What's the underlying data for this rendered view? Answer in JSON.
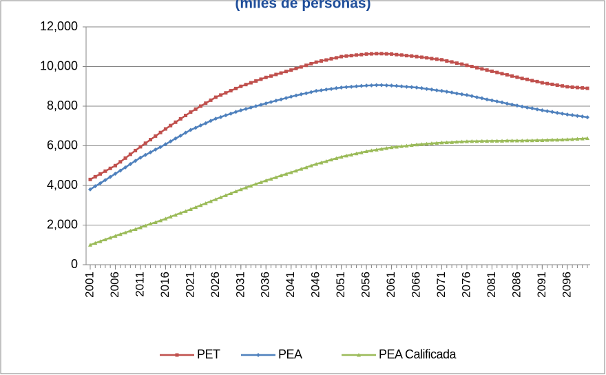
{
  "chart_data": {
    "type": "line",
    "title": "(miles de personas)",
    "x": [
      2001,
      2002,
      2003,
      2004,
      2005,
      2006,
      2007,
      2008,
      2009,
      2010,
      2011,
      2012,
      2013,
      2014,
      2015,
      2016,
      2017,
      2018,
      2019,
      2020,
      2021,
      2022,
      2023,
      2024,
      2025,
      2026,
      2027,
      2028,
      2029,
      2030,
      2031,
      2032,
      2033,
      2034,
      2035,
      2036,
      2037,
      2038,
      2039,
      2040,
      2041,
      2042,
      2043,
      2044,
      2045,
      2046,
      2047,
      2048,
      2049,
      2050,
      2051,
      2052,
      2053,
      2054,
      2055,
      2056,
      2057,
      2058,
      2059,
      2060,
      2061,
      2062,
      2063,
      2064,
      2065,
      2066,
      2067,
      2068,
      2069,
      2070,
      2071,
      2072,
      2073,
      2074,
      2075,
      2076,
      2077,
      2078,
      2079,
      2080,
      2081,
      2082,
      2083,
      2084,
      2085,
      2086,
      2087,
      2088,
      2089,
      2090,
      2091,
      2092,
      2093,
      2094,
      2095,
      2096,
      2097,
      2098,
      2099,
      2100
    ],
    "series": [
      {
        "name": "PET",
        "color": "#c0504d",
        "marker": "square",
        "values": [
          4300,
          4440,
          4580,
          4720,
          4860,
          5000,
          5190,
          5380,
          5570,
          5760,
          5950,
          6130,
          6310,
          6490,
          6670,
          6850,
          7020,
          7190,
          7360,
          7530,
          7700,
          7850,
          8000,
          8150,
          8300,
          8450,
          8560,
          8670,
          8780,
          8890,
          9000,
          9090,
          9180,
          9270,
          9360,
          9450,
          9520,
          9600,
          9670,
          9750,
          9820,
          9900,
          9980,
          10060,
          10140,
          10220,
          10280,
          10330,
          10390,
          10440,
          10500,
          10530,
          10550,
          10580,
          10600,
          10630,
          10640,
          10650,
          10650,
          10640,
          10630,
          10600,
          10580,
          10550,
          10530,
          10500,
          10470,
          10440,
          10400,
          10370,
          10340,
          10280,
          10230,
          10170,
          10120,
          10060,
          10000,
          9940,
          9880,
          9820,
          9760,
          9700,
          9640,
          9580,
          9520,
          9460,
          9400,
          9350,
          9290,
          9240,
          9180,
          9140,
          9100,
          9060,
          9020,
          8980,
          8960,
          8940,
          8920,
          8900
        ]
      },
      {
        "name": "PEA",
        "color": "#4f81bd",
        "marker": "diamond",
        "values": [
          3800,
          3960,
          4110,
          4270,
          4430,
          4590,
          4750,
          4910,
          5080,
          5240,
          5400,
          5540,
          5670,
          5810,
          5940,
          6080,
          6220,
          6370,
          6510,
          6660,
          6800,
          6910,
          7030,
          7140,
          7260,
          7370,
          7450,
          7540,
          7620,
          7710,
          7790,
          7860,
          7930,
          8000,
          8070,
          8140,
          8210,
          8280,
          8340,
          8410,
          8480,
          8540,
          8600,
          8650,
          8710,
          8770,
          8800,
          8840,
          8870,
          8910,
          8940,
          8960,
          8980,
          9000,
          9020,
          9040,
          9050,
          9060,
          9060,
          9050,
          9040,
          9020,
          9000,
          8980,
          8960,
          8940,
          8910,
          8870,
          8840,
          8800,
          8770,
          8730,
          8690,
          8640,
          8600,
          8560,
          8510,
          8450,
          8400,
          8340,
          8290,
          8240,
          8190,
          8130,
          8080,
          8030,
          7980,
          7930,
          7890,
          7840,
          7790,
          7750,
          7710,
          7660,
          7620,
          7580,
          7550,
          7510,
          7480,
          7440
        ]
      },
      {
        "name": "PEA Calificada",
        "color": "#9bbb59",
        "marker": "triangle",
        "values": [
          1000,
          1090,
          1180,
          1270,
          1360,
          1450,
          1540,
          1620,
          1710,
          1790,
          1880,
          1970,
          2060,
          2140,
          2230,
          2320,
          2420,
          2510,
          2610,
          2700,
          2800,
          2900,
          3000,
          3100,
          3200,
          3300,
          3400,
          3500,
          3600,
          3700,
          3800,
          3890,
          3980,
          4070,
          4160,
          4250,
          4330,
          4410,
          4500,
          4580,
          4660,
          4740,
          4830,
          4910,
          5000,
          5080,
          5150,
          5220,
          5300,
          5370,
          5440,
          5500,
          5550,
          5610,
          5660,
          5720,
          5760,
          5800,
          5840,
          5880,
          5920,
          5950,
          5980,
          6000,
          6030,
          6060,
          6080,
          6100,
          6120,
          6140,
          6160,
          6170,
          6180,
          6200,
          6210,
          6220,
          6230,
          6230,
          6240,
          6240,
          6250,
          6250,
          6250,
          6260,
          6260,
          6260,
          6260,
          6270,
          6270,
          6280,
          6280,
          6290,
          6300,
          6300,
          6310,
          6320,
          6330,
          6350,
          6360,
          6380
        ]
      }
    ],
    "xlim": [
      2001,
      2100
    ],
    "xticks": [
      2001,
      2006,
      2011,
      2016,
      2021,
      2026,
      2031,
      2036,
      2041,
      2046,
      2051,
      2056,
      2061,
      2066,
      2071,
      2076,
      2081,
      2086,
      2091,
      2096
    ],
    "ylim": [
      0,
      12000
    ],
    "yticks": [
      0,
      {
        "value": 2000,
        "label": "2,000"
      },
      {
        "value": 4000,
        "label": "4,000"
      },
      {
        "value": 6000,
        "label": "6,000"
      },
      {
        "value": 8000,
        "label": "8,000"
      },
      {
        "value": 10000,
        "label": "10,000"
      },
      {
        "value": 12000,
        "label": "12,000"
      }
    ],
    "grid": true,
    "legend": "bottom"
  }
}
